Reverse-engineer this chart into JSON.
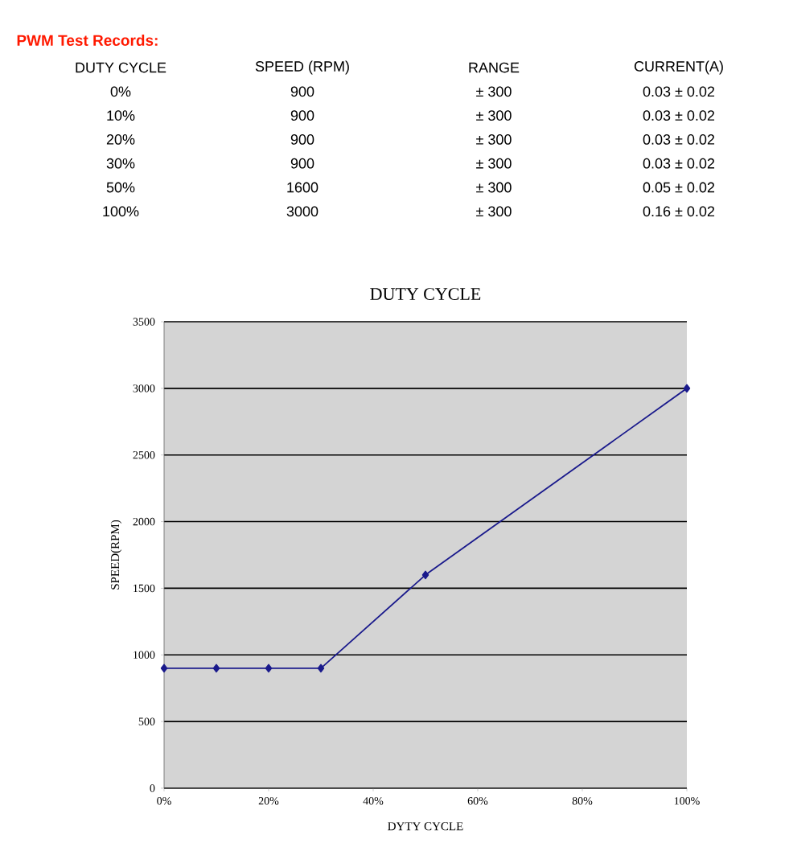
{
  "chart_data": {
    "type": "line",
    "title": "DUTY CYCLE",
    "xlabel": "DYTY CYCLE",
    "ylabel": "SPEED(RPM)",
    "x": [
      0,
      10,
      20,
      30,
      50,
      100
    ],
    "series": [
      {
        "color": "#1a1a8c",
        "values": [
          900,
          900,
          900,
          900,
          1600,
          3000
        ]
      }
    ],
    "xlim": [
      0,
      100
    ],
    "ylim": [
      0,
      3500
    ],
    "xticks": [
      {
        "value": 0,
        "label": "0%"
      },
      {
        "value": 20,
        "label": "20%"
      },
      {
        "value": 40,
        "label": "40%"
      },
      {
        "value": 60,
        "label": "60%"
      },
      {
        "value": 80,
        "label": "80%"
      },
      {
        "value": 100,
        "label": "100%"
      }
    ],
    "yticks": [
      0,
      500,
      1000,
      1500,
      2000,
      2500,
      3000,
      3500
    ],
    "grid": "y",
    "marker": "diamond",
    "line_style": "solid",
    "annotations": [
      "PWM Test Records:",
      "DUTY CYCLE",
      "SPEED (RPM)",
      "RANGE",
      "CURRENT(A)",
      "0%",
      "900",
      "± 300",
      "0.03 ± 0.02",
      "10%",
      "900",
      "± 300",
      "0.03 ± 0.02",
      "20%",
      "900",
      "± 300",
      "0.03 ± 0.02",
      "30%",
      "900",
      "± 300",
      "0.03 ± 0.02",
      "50%",
      "1600",
      "± 300",
      "0.05 ± 0.02",
      "100%",
      "3000",
      "± 300",
      "0.16 ± 0.02"
    ]
  }
}
